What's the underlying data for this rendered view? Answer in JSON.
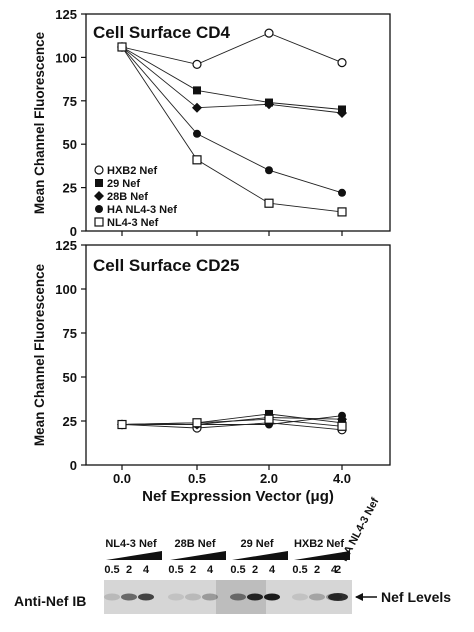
{
  "chart_data": [
    {
      "type": "line",
      "title": "Cell Surface CD4",
      "ylabel": "Mean Channel Fluorescence",
      "xlabel": "",
      "x": [
        0.0,
        0.5,
        2.0,
        4.0
      ],
      "x_tick_labels": [],
      "ylim": [
        0,
        125
      ],
      "y_ticks": [
        0,
        25,
        50,
        75,
        100,
        125
      ],
      "grid": false,
      "legend_position": "bottom-left",
      "series": [
        {
          "name": "HXB2 Nef",
          "marker": "open-circle",
          "values": [
            106,
            96,
            114,
            97
          ]
        },
        {
          "name": "29 Nef",
          "marker": "filled-square",
          "values": [
            106,
            81,
            74,
            70
          ]
        },
        {
          "name": "28B Nef",
          "marker": "filled-diamond",
          "values": [
            106,
            71,
            73,
            68
          ]
        },
        {
          "name": "HA NL4-3 Nef",
          "marker": "filled-circle",
          "values": [
            106,
            56,
            35,
            22
          ]
        },
        {
          "name": "NL4-3 Nef",
          "marker": "open-square",
          "values": [
            106,
            41,
            16,
            11
          ]
        }
      ]
    },
    {
      "type": "line",
      "title": "Cell Surface CD25",
      "ylabel": "Mean Channel Fluorescence",
      "xlabel": "Nef Expression Vector (μg)",
      "x": [
        0.0,
        0.5,
        2.0,
        4.0
      ],
      "x_tick_labels": [
        "0.0",
        "0.5",
        "2.0",
        "4.0"
      ],
      "ylim": [
        0,
        125
      ],
      "y_ticks": [
        0,
        25,
        50,
        75,
        100,
        125
      ],
      "grid": false,
      "series": [
        {
          "name": "HXB2 Nef",
          "marker": "open-circle",
          "values": [
            23,
            21,
            24,
            20
          ]
        },
        {
          "name": "29 Nef",
          "marker": "filled-square",
          "values": [
            23,
            24,
            29,
            24
          ]
        },
        {
          "name": "28B Nef",
          "marker": "filled-diamond",
          "values": [
            23,
            23,
            27,
            26
          ]
        },
        {
          "name": "HA NL4-3 Nef",
          "marker": "filled-circle",
          "values": [
            23,
            23,
            23,
            28
          ]
        },
        {
          "name": "NL4-3 Nef",
          "marker": "open-square",
          "values": [
            23,
            24,
            26,
            22
          ]
        }
      ]
    }
  ],
  "blot": {
    "row_label": "Anti-Nef IB",
    "band_label": "Nef Levels",
    "groups": [
      {
        "name": "NL4-3 Nef",
        "lanes": [
          "0.5",
          "2",
          "4"
        ],
        "band_intensity": [
          0.15,
          0.55,
          0.75
        ]
      },
      {
        "name": "28B Nef",
        "lanes": [
          "0.5",
          "2",
          "4"
        ],
        "band_intensity": [
          0.1,
          0.15,
          0.3
        ]
      },
      {
        "name": "29 Nef",
        "lanes": [
          "0.5",
          "2",
          "4"
        ],
        "band_intensity": [
          0.5,
          0.9,
          0.95
        ]
      },
      {
        "name": "HXB2 Nef",
        "lanes": [
          "0.5",
          "2",
          "4"
        ],
        "band_intensity": [
          0.1,
          0.25,
          0.3
        ]
      },
      {
        "name": "HA NL4-3 Nef",
        "lanes": [
          "2"
        ],
        "band_intensity": [
          0.85
        ]
      }
    ]
  }
}
